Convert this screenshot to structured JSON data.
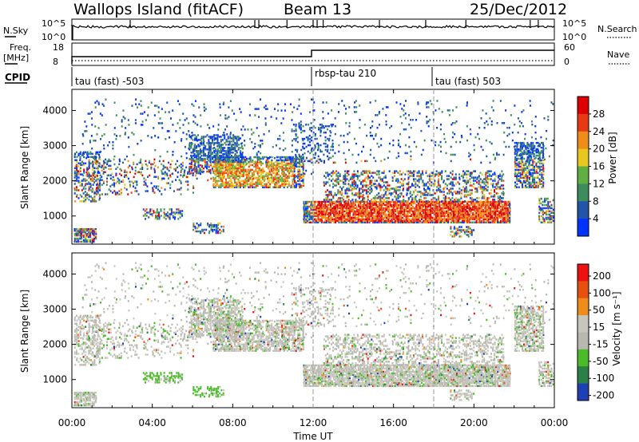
{
  "header": {
    "station": "Wallops Island (fitACF)",
    "beam": "Beam 13",
    "date": "25/Dec/2012"
  },
  "panels": {
    "nsky_label": "N.Sky",
    "nsky_ticks": [
      "10^5",
      "10^0"
    ],
    "nsearch_label": "N.Search",
    "nsearch_ticks": [
      "10^5",
      "10^0"
    ],
    "freq_label": "Freq.",
    "freq_unit": "[MHz]",
    "freq_ticks": [
      "18",
      "8"
    ],
    "nave_label": "Nave",
    "nave_ticks": [
      "60",
      "0"
    ],
    "cpid_label": "CPID",
    "cpid_segments": [
      {
        "name": "tau (fast) -503",
        "start_ut": "00:00"
      },
      {
        "name": "rbsp-tau 210",
        "start_ut": "12:00"
      },
      {
        "name": "tau (fast) 503",
        "start_ut": "18:00"
      }
    ]
  },
  "chart_data": [
    {
      "type": "heatmap",
      "title": "Power",
      "ylabel": "Slant Range [km]",
      "yticks": [
        "1000",
        "2000",
        "3000",
        "4000"
      ],
      "ylim": [
        200,
        4600
      ],
      "colorbar": {
        "label": "Power [dB]",
        "ticks": [
          "28",
          "24",
          "20",
          "16",
          "12",
          "8",
          "4"
        ],
        "colors": [
          "#0033ff",
          "#2255aa",
          "#3d8c5c",
          "#5fb040",
          "#e8c820",
          "#f08c1a",
          "#e83a12",
          "#dd0000"
        ]
      }
    },
    {
      "type": "heatmap",
      "title": "Velocity",
      "ylabel": "Slant Range [km]",
      "yticks": [
        "1000",
        "2000",
        "3000",
        "4000"
      ],
      "ylim": [
        200,
        4600
      ],
      "colorbar": {
        "label": "Velocity [m s⁻¹]",
        "ticks": [
          "200",
          "100",
          "50",
          "15",
          "-15",
          "-50",
          "-100",
          "-200"
        ],
        "colors": [
          "#1f3fb4",
          "#2a8046",
          "#4cbb2a",
          "#b8b8b0",
          "#c8c6bc",
          "#f08c1a",
          "#e85010",
          "#ee1111"
        ]
      }
    }
  ],
  "xaxis": {
    "label": "Time UT",
    "ticks": [
      "00:00",
      "04:00",
      "08:00",
      "12:00",
      "16:00",
      "20:00",
      "00:00"
    ],
    "xlim_hours": [
      0,
      24
    ]
  }
}
